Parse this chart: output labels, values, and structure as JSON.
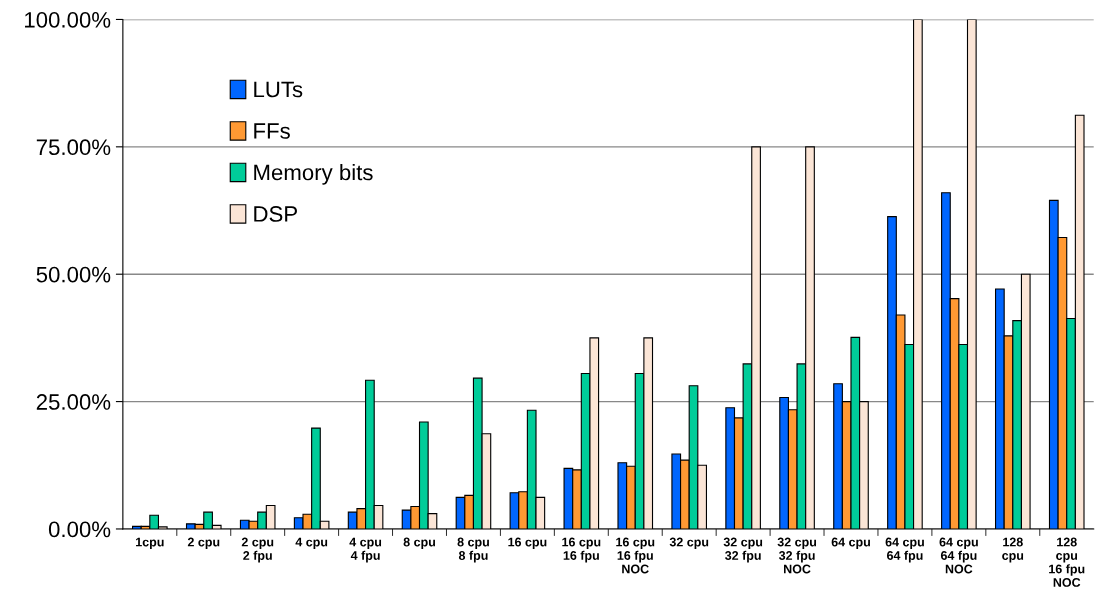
{
  "chart_data": {
    "type": "bar",
    "categories": [
      "1cpu",
      "2 cpu",
      "2 cpu\n2 fpu",
      "4 cpu",
      "4 cpu\n4 fpu",
      "8 cpu",
      "8 cpu\n8 fpu",
      "16 cpu",
      "16 cpu\n16 fpu",
      "16 cpu\n16 fpu\nNOC",
      "32 cpu",
      "32 cpu\n32 fpu",
      "32 cpu\n32 fpu\nNOC",
      "64 cpu",
      "64 cpu\n64 fpu",
      "64 cpu\n64 fpu\nNOC",
      "128\ncpu",
      "128\ncpu\n16 fpu\nNOC"
    ],
    "series": [
      {
        "name": "LUTs",
        "color": "#0066ff",
        "values": [
          0.5,
          1.0,
          1.7,
          2.2,
          3.3,
          3.7,
          6.2,
          7.1,
          11.9,
          13.0,
          14.7,
          23.8,
          25.8,
          28.5,
          61.3,
          66.0,
          47.1,
          64.5
        ]
      },
      {
        "name": "FFs",
        "color": "#ff9933",
        "values": [
          0.5,
          0.9,
          1.5,
          2.9,
          4.0,
          4.4,
          6.6,
          7.3,
          11.6,
          12.3,
          13.5,
          21.8,
          23.4,
          25.0,
          42.0,
          45.2,
          37.9,
          57.2
        ]
      },
      {
        "name": "Memory bits",
        "color": "#00cc99",
        "values": [
          2.7,
          3.3,
          3.3,
          19.8,
          29.2,
          21.0,
          29.6,
          23.3,
          30.5,
          30.5,
          28.1,
          32.4,
          32.4,
          37.6,
          36.2,
          36.2,
          40.9,
          41.3
        ]
      },
      {
        "name": "DSP",
        "color": "#fbe5d6",
        "values": [
          0.4,
          0.7,
          4.6,
          1.5,
          4.6,
          3.0,
          18.7,
          6.2,
          37.5,
          37.5,
          12.5,
          75.0,
          75.0,
          25.0,
          100.0,
          100.0,
          50.0,
          81.2
        ]
      }
    ],
    "ylim": [
      0,
      100
    ],
    "yticks": [
      {
        "value": 0,
        "label": "0.00%"
      },
      {
        "value": 25,
        "label": "25.00%"
      },
      {
        "value": 50,
        "label": "50.00%"
      },
      {
        "value": 75,
        "label": "75.00%"
      },
      {
        "value": 100,
        "label": "100.00%"
      }
    ],
    "grid": "y",
    "legend": "top left"
  }
}
